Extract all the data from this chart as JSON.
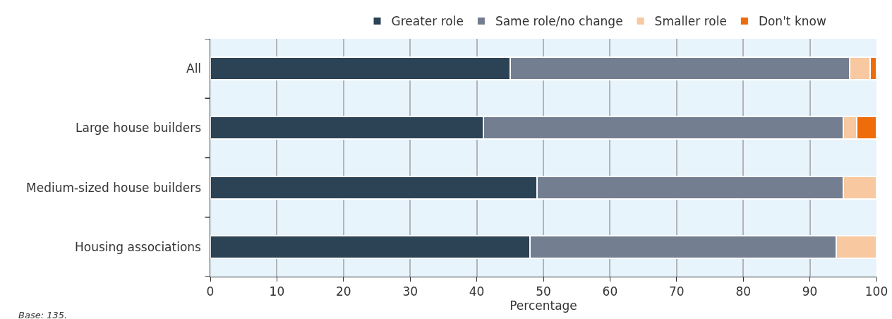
{
  "chart_data": {
    "type": "bar",
    "orientation": "horizontal",
    "stacked": true,
    "xlabel": "Percentage",
    "categories": [
      "All",
      "Large house builders",
      "Medium-sized house builders",
      "Housing associations"
    ],
    "series": [
      {
        "name": "Greater role",
        "color": "#2c4255",
        "values": [
          45,
          41,
          49,
          48
        ]
      },
      {
        "name": "Same role/no change",
        "color": "#737f90",
        "values": [
          51,
          54,
          46,
          46
        ]
      },
      {
        "name": "Smaller role",
        "color": "#f8c8a0",
        "values": [
          3,
          2,
          5,
          6
        ]
      },
      {
        "name": "Don't know",
        "color": "#ef6c0a",
        "values": [
          1,
          3,
          0,
          0
        ]
      }
    ],
    "xlim": [
      0,
      100
    ],
    "xticks": [
      0,
      10,
      20,
      30,
      40,
      50,
      60,
      70,
      80,
      90,
      100
    ],
    "grid": "x",
    "legend": "top",
    "annotations": [
      "Base: 135."
    ]
  }
}
